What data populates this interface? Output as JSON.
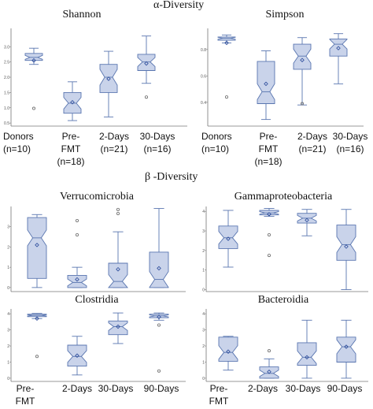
{
  "figure": {
    "alpha_header": "α-Diversity",
    "beta_header": "β -Diversity",
    "alpha_groups": [
      {
        "line1": "Donors",
        "line2": "(n=10)",
        "line3": ""
      },
      {
        "line1": "Pre-",
        "line2": "FMT",
        "line3": "(n=18)"
      },
      {
        "line1": "2-Days",
        "line2": "(n=21)",
        "line3": ""
      },
      {
        "line1": "30-Days",
        "line2": "(n=16)",
        "line3": ""
      }
    ],
    "beta_groups_left": [
      {
        "line1": "Pre-",
        "line2": "FMT"
      },
      {
        "line1": "2-Days",
        "line2": ""
      },
      {
        "line1": "30-Days",
        "line2": ""
      },
      {
        "line1": "90-Days",
        "line2": ""
      }
    ],
    "beta_groups_right": [
      {
        "line1": "Pre-",
        "line2": "FMT"
      },
      {
        "line1": "2-Days",
        "line2": ""
      },
      {
        "line1": "30-Days",
        "line2": ""
      },
      {
        "line1": "90-Days",
        "line2": ""
      }
    ]
  },
  "colors": {
    "box_fill": "#c9d3ea",
    "box_stroke": "#5a76b0",
    "mean_marker": "#2a4a9a",
    "outlier": "#6a6a6a"
  },
  "chart_data": [
    {
      "id": "shannon",
      "type": "box",
      "title": "Shannon",
      "categories": [
        "Donors",
        "Pre-FMT",
        "2-Days",
        "30-Days"
      ],
      "ylim": [
        0.4,
        3.6
      ],
      "yticks": [
        "0.5",
        "1.0",
        "1.5",
        "2.0",
        "2.5",
        "3.0"
      ],
      "boxes": [
        {
          "min": 2.42,
          "q1": 2.55,
          "median": 2.65,
          "q3": 2.78,
          "max": 2.95,
          "mean": 2.55,
          "outliers": [
            0.98
          ]
        },
        {
          "min": 0.58,
          "q1": 0.82,
          "median": 1.15,
          "q3": 1.5,
          "max": 1.85,
          "mean": 1.18,
          "outliers": []
        },
        {
          "min": 0.7,
          "q1": 1.5,
          "median": 2.0,
          "q3": 2.42,
          "max": 2.85,
          "mean": 1.95,
          "outliers": []
        },
        {
          "min": 1.8,
          "q1": 2.22,
          "median": 2.5,
          "q3": 2.75,
          "max": 3.35,
          "mean": 2.45,
          "outliers": [
            1.35
          ]
        }
      ]
    },
    {
      "id": "simpson",
      "type": "box",
      "title": "Simpson",
      "categories": [
        "Donors",
        "Pre-FMT",
        "2-Days",
        "30-Days"
      ],
      "ylim": [
        0.22,
        0.96
      ],
      "yticks": [
        "0.4",
        "0.6",
        "0.8"
      ],
      "boxes": [
        {
          "min": 0.85,
          "q1": 0.87,
          "median": 0.885,
          "q3": 0.895,
          "max": 0.91,
          "mean": 0.85,
          "outliers": [
            0.44
          ]
        },
        {
          "min": 0.27,
          "q1": 0.39,
          "median": 0.48,
          "q3": 0.71,
          "max": 0.79,
          "mean": 0.54,
          "outliers": []
        },
        {
          "min": 0.38,
          "q1": 0.65,
          "median": 0.75,
          "q3": 0.84,
          "max": 0.89,
          "mean": 0.72,
          "outliers": [
            0.39
          ]
        },
        {
          "min": 0.54,
          "q1": 0.75,
          "median": 0.84,
          "q3": 0.88,
          "max": 0.92,
          "mean": 0.81,
          "outliers": []
        }
      ]
    },
    {
      "id": "verrucomicrobia",
      "type": "box",
      "title": "Verrucomicrobia",
      "categories": [
        "Pre-FMT",
        "2-Days",
        "30-Days",
        "90-Days"
      ],
      "ylim": [
        -0.2,
        4.0
      ],
      "yticks": [
        "0",
        "1",
        "2",
        "3"
      ],
      "boxes": [
        {
          "min": 0.0,
          "q1": 0.45,
          "median": 2.45,
          "q3": 3.45,
          "max": 3.6,
          "mean": 2.1,
          "outliers": []
        },
        {
          "min": 0.0,
          "q1": 0.0,
          "median": 0.25,
          "q3": 0.6,
          "max": 1.0,
          "mean": 0.4,
          "outliers": [
            2.6,
            3.3
          ]
        },
        {
          "min": 0.0,
          "q1": 0.0,
          "median": 0.3,
          "q3": 1.2,
          "max": 2.75,
          "mean": 0.9,
          "outliers": [
            3.65,
            3.85
          ]
        },
        {
          "min": 0.0,
          "q1": 0.0,
          "median": 0.4,
          "q3": 1.75,
          "max": 3.9,
          "mean": 0.95,
          "outliers": []
        }
      ]
    },
    {
      "id": "gammaproteobacteria",
      "type": "box",
      "title": "Gammaproteobacteria",
      "categories": [
        "Pre-FMT",
        "2-Days",
        "30-Days",
        "90-Days"
      ],
      "ylim": [
        -0.1,
        4.25
      ],
      "yticks": [
        "0",
        "1",
        "2",
        "3",
        "4"
      ],
      "boxes": [
        {
          "min": 1.15,
          "q1": 2.1,
          "median": 2.65,
          "q3": 3.25,
          "max": 4.05,
          "mean": 2.6,
          "outliers": []
        },
        {
          "min": 3.75,
          "q1": 3.82,
          "median": 3.92,
          "q3": 4.05,
          "max": 4.15,
          "mean": 3.85,
          "outliers": [
            2.8,
            1.75
          ]
        },
        {
          "min": 2.75,
          "q1": 3.4,
          "median": 3.65,
          "q3": 3.9,
          "max": 4.1,
          "mean": 3.55,
          "outliers": []
        },
        {
          "min": 0.0,
          "q1": 1.5,
          "median": 2.3,
          "q3": 3.3,
          "max": 4.1,
          "mean": 2.2,
          "outliers": []
        }
      ]
    },
    {
      "id": "clostridia",
      "type": "box",
      "title": "Clostridia",
      "categories": [
        "Pre-FMT",
        "2-Days",
        "30-Days",
        "90-Days"
      ],
      "ylim": [
        -0.2,
        4.3
      ],
      "yticks": [
        "0",
        "1",
        "2",
        "3",
        "4"
      ],
      "boxes": [
        {
          "min": 3.7,
          "q1": 3.82,
          "median": 3.9,
          "q3": 3.97,
          "max": 4.02,
          "mean": 3.7,
          "outliers": [
            1.35
          ]
        },
        {
          "min": 0.2,
          "q1": 0.75,
          "median": 1.35,
          "q3": 2.05,
          "max": 2.6,
          "mean": 1.4,
          "outliers": []
        },
        {
          "min": 2.15,
          "q1": 2.7,
          "median": 3.2,
          "q3": 3.55,
          "max": 4.05,
          "mean": 3.2,
          "outliers": []
        },
        {
          "min": 3.6,
          "q1": 3.75,
          "median": 3.87,
          "q3": 3.97,
          "max": 4.05,
          "mean": 3.8,
          "outliers": [
            3.3,
            0.45
          ]
        }
      ]
    },
    {
      "id": "bacteroidia",
      "type": "box",
      "title": "Bacteroidia",
      "categories": [
        "Pre-FMT",
        "2-Days",
        "30-Days",
        "90-Days"
      ],
      "ylim": [
        -0.2,
        4.3
      ],
      "yticks": [
        "0",
        "1",
        "2",
        "3",
        "4"
      ],
      "boxes": [
        {
          "min": 0.5,
          "q1": 1.05,
          "median": 1.6,
          "q3": 2.55,
          "max": 2.6,
          "mean": 1.65,
          "outliers": []
        },
        {
          "min": 0.0,
          "q1": 0.0,
          "median": 0.3,
          "q3": 0.7,
          "max": 1.2,
          "mean": 0.4,
          "outliers": [
            1.7
          ]
        },
        {
          "min": 0.0,
          "q1": 0.8,
          "median": 1.3,
          "q3": 2.2,
          "max": 3.6,
          "mean": 1.3,
          "outliers": []
        },
        {
          "min": 0.0,
          "q1": 1.0,
          "median": 1.95,
          "q3": 2.55,
          "max": 3.6,
          "mean": 1.95,
          "outliers": []
        }
      ]
    }
  ]
}
